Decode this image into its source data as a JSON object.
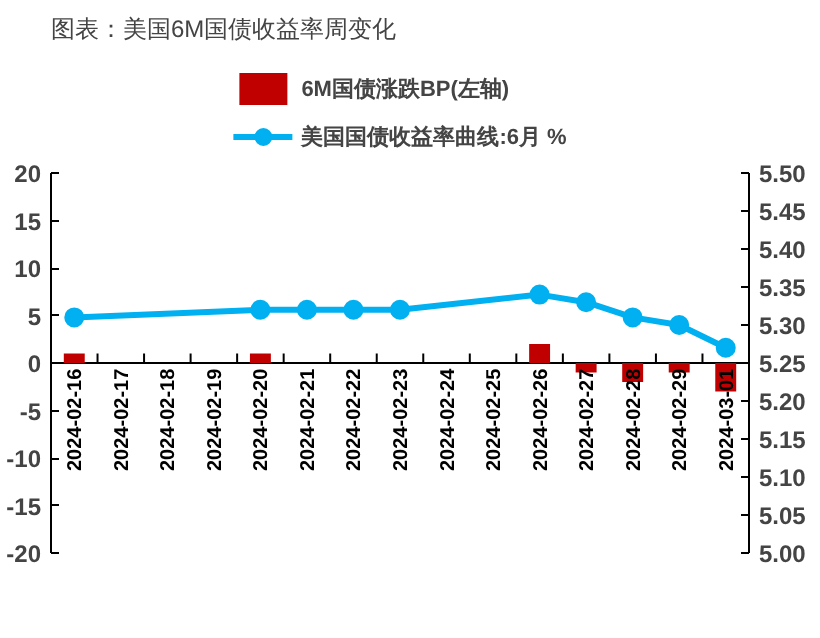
{
  "chart_data": {
    "type": "bar",
    "title": "图表：美国6M国债收益率周变化",
    "categories": [
      "2024-02-16",
      "2024-02-17",
      "2024-02-18",
      "2024-02-19",
      "2024-02-20",
      "2024-02-21",
      "2024-02-22",
      "2024-02-23",
      "2024-02-24",
      "2024-02-25",
      "2024-02-26",
      "2024-02-27",
      "2024-02-28",
      "2024-02-29",
      "2024-03-01"
    ],
    "series": [
      {
        "name": "6M国债涨跌BP(左轴)",
        "color": "#c00000",
        "values": [
          1,
          null,
          null,
          null,
          1,
          0,
          0,
          0,
          null,
          null,
          2,
          -1,
          -2,
          -1,
          -3
        ]
      },
      {
        "name": "美国国债收益率曲线:6月 %",
        "type": "line",
        "axis": "y2",
        "color": "#00b0f0",
        "marker": "circle",
        "values": [
          5.31,
          null,
          null,
          null,
          5.32,
          5.32,
          5.32,
          5.32,
          null,
          null,
          5.34,
          5.33,
          5.31,
          5.3,
          5.27
        ]
      }
    ],
    "ylim": [
      -20,
      20
    ],
    "yticks": [
      -20,
      -15,
      -10,
      -5,
      0,
      5,
      10,
      15,
      20
    ],
    "y2lim": [
      5.0,
      5.5
    ],
    "y2ticks": [
      {
        "value": 5.0,
        "label": "5.00"
      },
      {
        "value": 5.05,
        "label": "5.05"
      },
      {
        "value": 5.1,
        "label": "5.10"
      },
      {
        "value": 5.15,
        "label": "5.15"
      },
      {
        "value": 5.2,
        "label": "5.20"
      },
      {
        "value": 5.25,
        "label": "5.25"
      },
      {
        "value": 5.3,
        "label": "5.30"
      },
      {
        "value": 5.35,
        "label": "5.35"
      },
      {
        "value": 5.4,
        "label": "5.40"
      },
      {
        "value": 5.45,
        "label": "5.45"
      },
      {
        "value": 5.5,
        "label": "5.50"
      }
    ],
    "grid": false,
    "legend": "top"
  }
}
